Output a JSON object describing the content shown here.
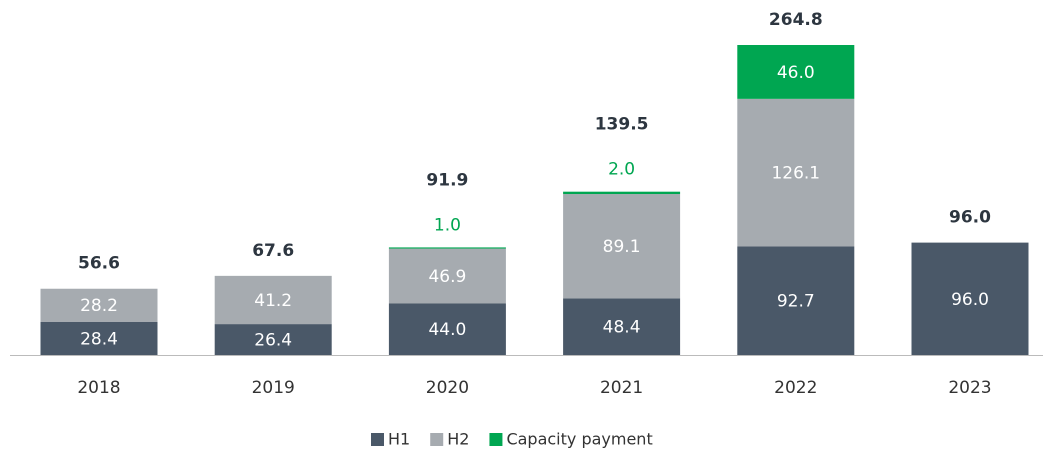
{
  "chart_data": {
    "type": "stacked-bar",
    "categories": [
      "2018",
      "2019",
      "2020",
      "2021",
      "2022",
      "2023"
    ],
    "series": [
      {
        "name": "H1",
        "color": "#4a5868",
        "values": [
          28.4,
          26.4,
          44.0,
          48.4,
          92.7,
          96.0
        ],
        "value_labels": [
          "28.4",
          "26.4",
          "44.0",
          "48.4",
          "92.7",
          "96.0"
        ]
      },
      {
        "name": "H2",
        "color": "#a6abb0",
        "values": [
          28.2,
          41.2,
          46.9,
          89.1,
          126.1,
          null
        ],
        "value_labels": [
          "28.2",
          "41.2",
          "46.9",
          "89.1",
          "126.1",
          null
        ]
      },
      {
        "name": "Capacity payment",
        "color": "#00a651",
        "values": [
          null,
          null,
          1.0,
          2.0,
          46.0,
          null
        ],
        "value_labels": [
          null,
          null,
          "1.0",
          "2.0",
          "46.0",
          null
        ]
      }
    ],
    "totals": [
      56.6,
      67.6,
      91.9,
      139.5,
      264.8,
      96.0
    ],
    "total_labels": [
      "56.6",
      "67.6",
      "91.9",
      "139.5",
      "264.8",
      "96.0"
    ],
    "legend": "bottom"
  }
}
